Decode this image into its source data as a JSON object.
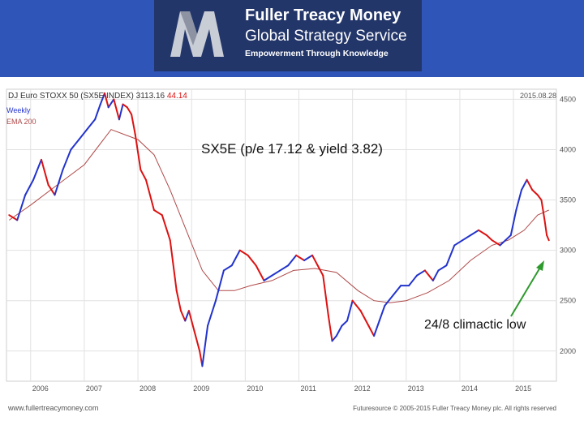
{
  "header": {
    "line1": "Fuller Treacy Money",
    "line2": "Global Strategy Service",
    "line3": "Empowerment Through Knowledge",
    "logo_icon": "fuller-treacy-m-logo"
  },
  "chart_data": {
    "type": "line",
    "title": "DJ Euro STOXX 50 (SX5E INDEX)",
    "last_price": "3113.16",
    "change": "44.14",
    "date_label": "2015.08.28",
    "legend": [
      "Weekly",
      "EMA 200"
    ],
    "annotation_main": "SX5E (p/e 17.12 & yield 3.82)",
    "annotation_low": "24/8 climactic low",
    "x_ticks": [
      "2006",
      "2007",
      "2008",
      "2009",
      "2010",
      "2011",
      "2012",
      "2013",
      "2014",
      "2015"
    ],
    "y_ticks": [
      2000,
      2500,
      3000,
      3500,
      4000,
      4500
    ],
    "ylim": [
      1700,
      4600
    ],
    "xlim": [
      2005.55,
      2015.8
    ],
    "grid": true,
    "footer_left": "www.fullertreacymoney.com",
    "footer_right": "Futuresource © 2005-2015 Fuller Treacy Money plc. All rights reserved",
    "colors": {
      "up": "#2233cc",
      "down": "#dd1111",
      "ema": "#b04848",
      "arrow": "#2e9a2e"
    },
    "series": [
      {
        "name": "Weekly",
        "x": [
          2005.6,
          2005.75,
          2005.9,
          2006.05,
          2006.2,
          2006.33,
          2006.45,
          2006.6,
          2006.75,
          2006.9,
          2007.05,
          2007.2,
          2007.3,
          2007.38,
          2007.45,
          2007.55,
          2007.65,
          2007.72,
          2007.8,
          2007.88,
          2007.95,
          2008.05,
          2008.15,
          2008.3,
          2008.45,
          2008.6,
          2008.72,
          2008.8,
          2008.88,
          2008.95,
          2009.05,
          2009.15,
          2009.2,
          2009.3,
          2009.45,
          2009.6,
          2009.75,
          2009.9,
          2010.05,
          2010.2,
          2010.35,
          2010.5,
          2010.65,
          2010.8,
          2010.95,
          2011.1,
          2011.25,
          2011.35,
          2011.45,
          2011.55,
          2011.62,
          2011.7,
          2011.8,
          2011.9,
          2012.0,
          2012.15,
          2012.3,
          2012.4,
          2012.5,
          2012.6,
          2012.75,
          2012.9,
          2013.05,
          2013.2,
          2013.35,
          2013.5,
          2013.6,
          2013.75,
          2013.9,
          2014.05,
          2014.2,
          2014.35,
          2014.5,
          2014.6,
          2014.75,
          2014.85,
          2014.95,
          2015.05,
          2015.15,
          2015.25,
          2015.35,
          2015.45,
          2015.52,
          2015.58,
          2015.62,
          2015.66
        ],
        "values": [
          3350,
          3300,
          3550,
          3700,
          3900,
          3650,
          3550,
          3800,
          4000,
          4100,
          4200,
          4300,
          4450,
          4560,
          4420,
          4500,
          4300,
          4450,
          4420,
          4350,
          4150,
          3800,
          3700,
          3400,
          3350,
          3100,
          2600,
          2400,
          2300,
          2400,
          2200,
          2000,
          1850,
          2250,
          2500,
          2800,
          2850,
          3000,
          2950,
          2850,
          2700,
          2750,
          2800,
          2850,
          2950,
          2900,
          2950,
          2850,
          2750,
          2350,
          2100,
          2150,
          2250,
          2300,
          2500,
          2400,
          2250,
          2150,
          2300,
          2450,
          2550,
          2650,
          2650,
          2750,
          2800,
          2700,
          2800,
          2850,
          3050,
          3100,
          3150,
          3200,
          3150,
          3100,
          3050,
          3100,
          3150,
          3400,
          3600,
          3700,
          3600,
          3550,
          3500,
          3300,
          3150,
          3100
        ]
      },
      {
        "name": "EMA 200",
        "x": [
          2005.6,
          2006.0,
          2006.5,
          2007.0,
          2007.5,
          2008.0,
          2008.3,
          2008.6,
          2008.9,
          2009.2,
          2009.5,
          2009.8,
          2010.1,
          2010.5,
          2010.9,
          2011.3,
          2011.7,
          2012.1,
          2012.4,
          2012.7,
          2013.0,
          2013.4,
          2013.8,
          2014.2,
          2014.6,
          2014.9,
          2015.2,
          2015.45,
          2015.66
        ],
        "values": [
          3300,
          3450,
          3650,
          3850,
          4200,
          4100,
          3950,
          3600,
          3200,
          2800,
          2600,
          2600,
          2650,
          2700,
          2800,
          2820,
          2780,
          2600,
          2500,
          2480,
          2500,
          2580,
          2700,
          2900,
          3050,
          3100,
          3200,
          3350,
          3400
        ]
      }
    ]
  }
}
